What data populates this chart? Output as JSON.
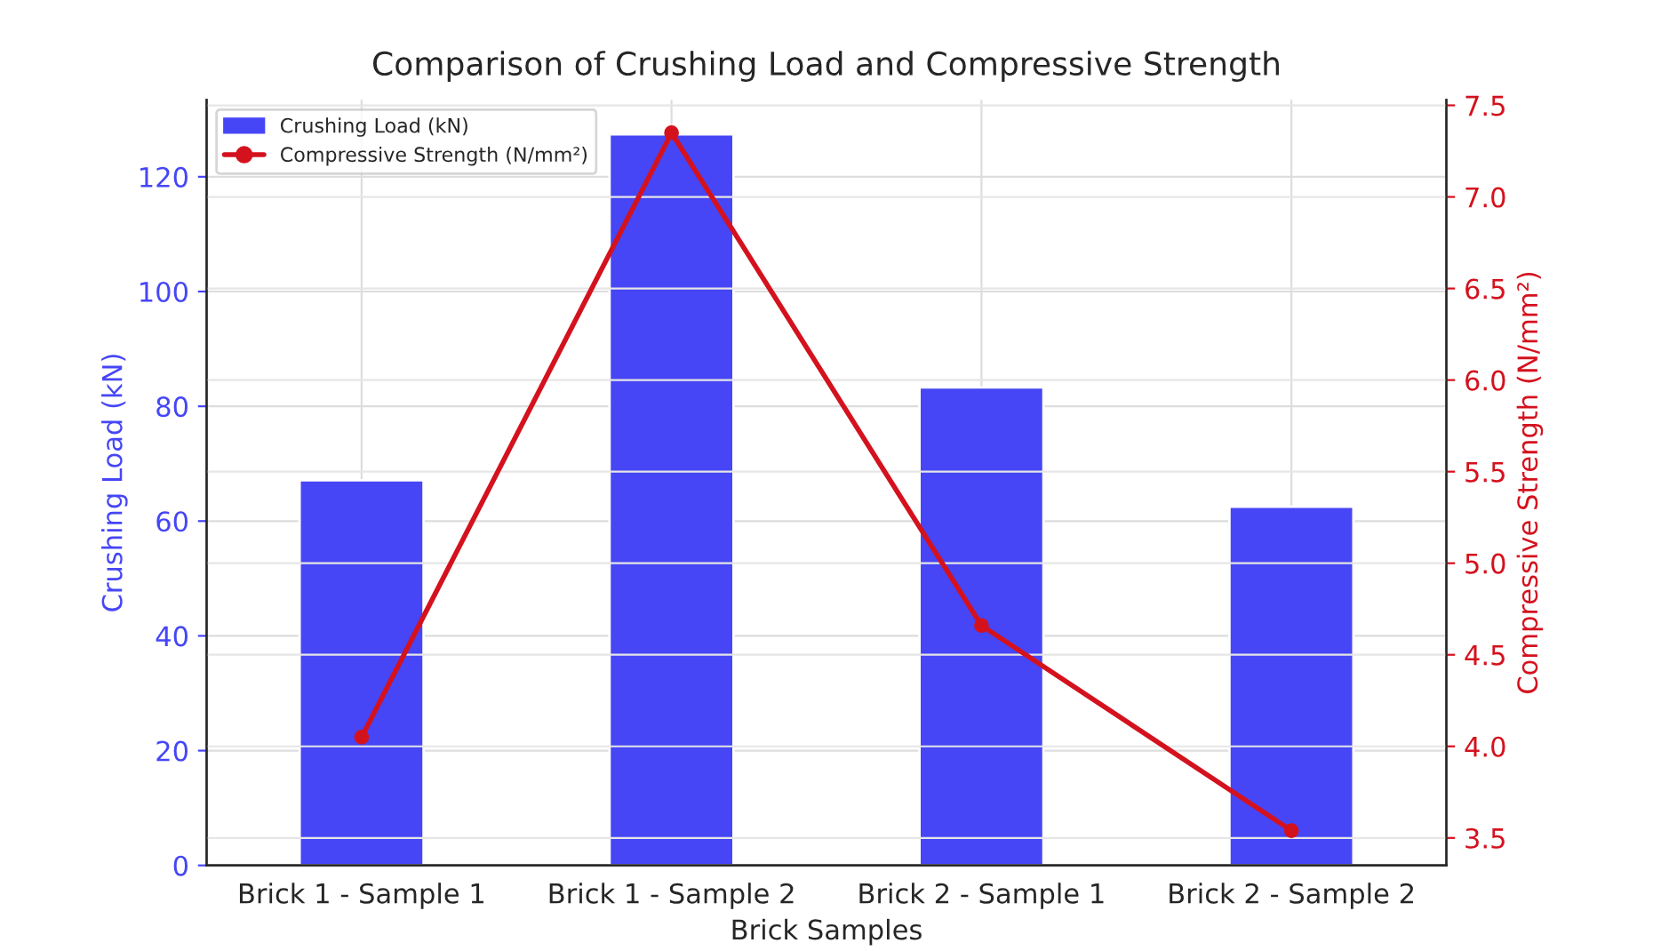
{
  "chart_data": {
    "type": "bar",
    "title": "Comparison of Crushing Load and Compressive Strength",
    "xlabel": "Brick Samples",
    "ylabel": "Crushing Load (kN)",
    "y2label": "Compressive Strength (N/mm²)",
    "categories": [
      "Brick 1 - Sample 1",
      "Brick 1 - Sample 2",
      "Brick 2 - Sample 1",
      "Brick 2 - Sample 2"
    ],
    "series": [
      {
        "name": "Crushing Load (kN)",
        "color": "#4646f6",
        "values": [
          67.1,
          127.4,
          83.3,
          62.5
        ]
      },
      {
        "name": "Compressive Strength (N/mm²)",
        "type": "line",
        "axis": "y2",
        "color": "#d4121e",
        "marker": "circle",
        "line_style": "solid",
        "values": [
          4.05,
          7.35,
          4.66,
          3.54
        ]
      }
    ],
    "ylim": [
      0,
      133.4
    ],
    "yticks": [
      0,
      20,
      40,
      60,
      80,
      100,
      120
    ],
    "y2lim": [
      3.35,
      7.53
    ],
    "y2ticks": [
      3.5,
      {
        "value": 4,
        "label": "4.0"
      },
      4.5,
      {
        "value": 5,
        "label": "5.0"
      },
      5.5,
      {
        "value": 6,
        "label": "6.0"
      },
      6.5,
      {
        "value": 7,
        "label": "7.0"
      },
      7.5
    ],
    "grid": true,
    "legend": "top left"
  }
}
